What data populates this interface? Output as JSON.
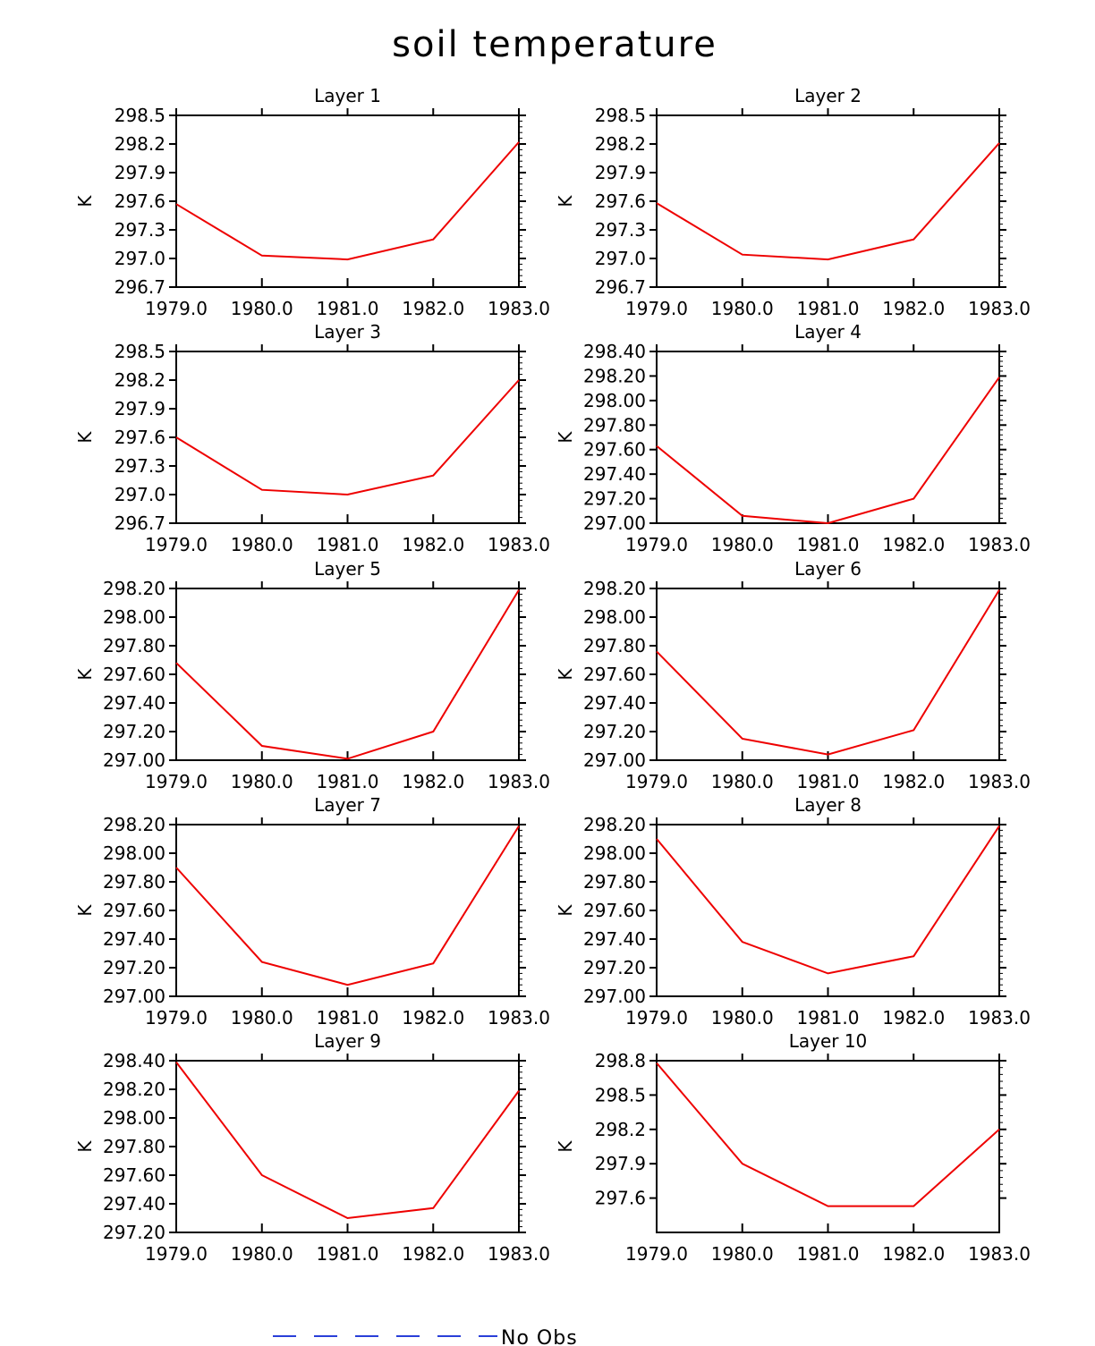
{
  "figure": {
    "title": "soil temperature",
    "legend": {
      "label": "No Obs",
      "line_color": "#2a3fd8",
      "line_style": "dashed"
    },
    "series_color": "#ee0000"
  },
  "chart_data": [
    {
      "type": "line",
      "title": "Layer 1",
      "ylabel": "K",
      "x": [
        1979,
        1980,
        1981,
        1982,
        1983
      ],
      "y": [
        297.57,
        297.03,
        296.99,
        297.2,
        298.22
      ],
      "xlim": [
        1979,
        1983
      ],
      "ylim": [
        296.7,
        298.5
      ],
      "xticks": [
        "1979.0",
        "1980.0",
        "1981.0",
        "1982.0",
        "1983.0"
      ],
      "yticks": [
        "296.7",
        "297.0",
        "297.3",
        "297.6",
        "297.9",
        "298.2",
        "298.5"
      ]
    },
    {
      "type": "line",
      "title": "Layer 2",
      "ylabel": "K",
      "x": [
        1979,
        1980,
        1981,
        1982,
        1983
      ],
      "y": [
        297.58,
        297.04,
        296.99,
        297.2,
        298.21
      ],
      "xlim": [
        1979,
        1983
      ],
      "ylim": [
        296.7,
        298.5
      ],
      "xticks": [
        "1979.0",
        "1980.0",
        "1981.0",
        "1982.0",
        "1983.0"
      ],
      "yticks": [
        "296.7",
        "297.0",
        "297.3",
        "297.6",
        "297.9",
        "298.2",
        "298.5"
      ]
    },
    {
      "type": "line",
      "title": "Layer 3",
      "ylabel": "K",
      "x": [
        1979,
        1980,
        1981,
        1982,
        1983
      ],
      "y": [
        297.6,
        297.05,
        297.0,
        297.2,
        298.2
      ],
      "xlim": [
        1979,
        1983
      ],
      "ylim": [
        296.7,
        298.5
      ],
      "xticks": [
        "1979.0",
        "1980.0",
        "1981.0",
        "1982.0",
        "1983.0"
      ],
      "yticks": [
        "296.7",
        "297.0",
        "297.3",
        "297.6",
        "297.9",
        "298.2",
        "298.5"
      ]
    },
    {
      "type": "line",
      "title": "Layer 4",
      "ylabel": "K",
      "x": [
        1979,
        1980,
        1981,
        1982,
        1983
      ],
      "y": [
        297.63,
        297.06,
        297.0,
        297.2,
        298.19
      ],
      "xlim": [
        1979,
        1983
      ],
      "ylim": [
        297.0,
        298.4
      ],
      "xticks": [
        "1979.0",
        "1980.0",
        "1981.0",
        "1982.0",
        "1983.0"
      ],
      "yticks": [
        "297.00",
        "297.20",
        "297.40",
        "297.60",
        "297.80",
        "298.00",
        "298.20",
        "298.40"
      ]
    },
    {
      "type": "line",
      "title": "Layer 5",
      "ylabel": "K",
      "x": [
        1979,
        1980,
        1981,
        1982,
        1983
      ],
      "y": [
        297.68,
        297.1,
        297.01,
        297.2,
        298.19
      ],
      "xlim": [
        1979,
        1983
      ],
      "ylim": [
        297.0,
        298.2
      ],
      "xticks": [
        "1979.0",
        "1980.0",
        "1981.0",
        "1982.0",
        "1983.0"
      ],
      "yticks": [
        "297.00",
        "297.20",
        "297.40",
        "297.60",
        "297.80",
        "298.00",
        "298.20"
      ]
    },
    {
      "type": "line",
      "title": "Layer 6",
      "ylabel": "K",
      "x": [
        1979,
        1980,
        1981,
        1982,
        1983
      ],
      "y": [
        297.76,
        297.15,
        297.04,
        297.21,
        298.19
      ],
      "xlim": [
        1979,
        1983
      ],
      "ylim": [
        297.0,
        298.2
      ],
      "xticks": [
        "1979.0",
        "1980.0",
        "1981.0",
        "1982.0",
        "1983.0"
      ],
      "yticks": [
        "297.00",
        "297.20",
        "297.40",
        "297.60",
        "297.80",
        "298.00",
        "298.20"
      ]
    },
    {
      "type": "line",
      "title": "Layer 7",
      "ylabel": "K",
      "x": [
        1979,
        1980,
        1981,
        1982,
        1983
      ],
      "y": [
        297.9,
        297.24,
        297.08,
        297.23,
        298.19
      ],
      "xlim": [
        1979,
        1983
      ],
      "ylim": [
        297.0,
        298.2
      ],
      "xticks": [
        "1979.0",
        "1980.0",
        "1981.0",
        "1982.0",
        "1983.0"
      ],
      "yticks": [
        "297.00",
        "297.20",
        "297.40",
        "297.60",
        "297.80",
        "298.00",
        "298.20"
      ]
    },
    {
      "type": "line",
      "title": "Layer 8",
      "ylabel": "K",
      "x": [
        1979,
        1980,
        1981,
        1982,
        1983
      ],
      "y": [
        298.1,
        297.38,
        297.16,
        297.28,
        298.19
      ],
      "xlim": [
        1979,
        1983
      ],
      "ylim": [
        297.0,
        298.2
      ],
      "xticks": [
        "1979.0",
        "1980.0",
        "1981.0",
        "1982.0",
        "1983.0"
      ],
      "yticks": [
        "297.00",
        "297.20",
        "297.40",
        "297.60",
        "297.80",
        "298.00",
        "298.20"
      ]
    },
    {
      "type": "line",
      "title": "Layer 9",
      "ylabel": "K",
      "x": [
        1979,
        1980,
        1981,
        1982,
        1983
      ],
      "y": [
        298.39,
        297.6,
        297.3,
        297.37,
        298.19
      ],
      "xlim": [
        1979,
        1983
      ],
      "ylim": [
        297.2,
        298.4
      ],
      "xticks": [
        "1979.0",
        "1980.0",
        "1981.0",
        "1982.0",
        "1983.0"
      ],
      "yticks": [
        "297.20",
        "297.40",
        "297.60",
        "297.80",
        "298.00",
        "298.20",
        "298.40"
      ]
    },
    {
      "type": "line",
      "title": "Layer 10",
      "ylabel": "K",
      "x": [
        1979,
        1980,
        1981,
        1982,
        1983
      ],
      "y": [
        298.78,
        297.9,
        297.53,
        297.53,
        298.2
      ],
      "xlim": [
        1979,
        1983
      ],
      "ylim": [
        297.3,
        298.8
      ],
      "xticks": [
        "1979.0",
        "1980.0",
        "1981.0",
        "1982.0",
        "1983.0"
      ],
      "yticks": [
        "297.6",
        "297.9",
        "298.2",
        "298.5",
        "298.8"
      ]
    }
  ]
}
